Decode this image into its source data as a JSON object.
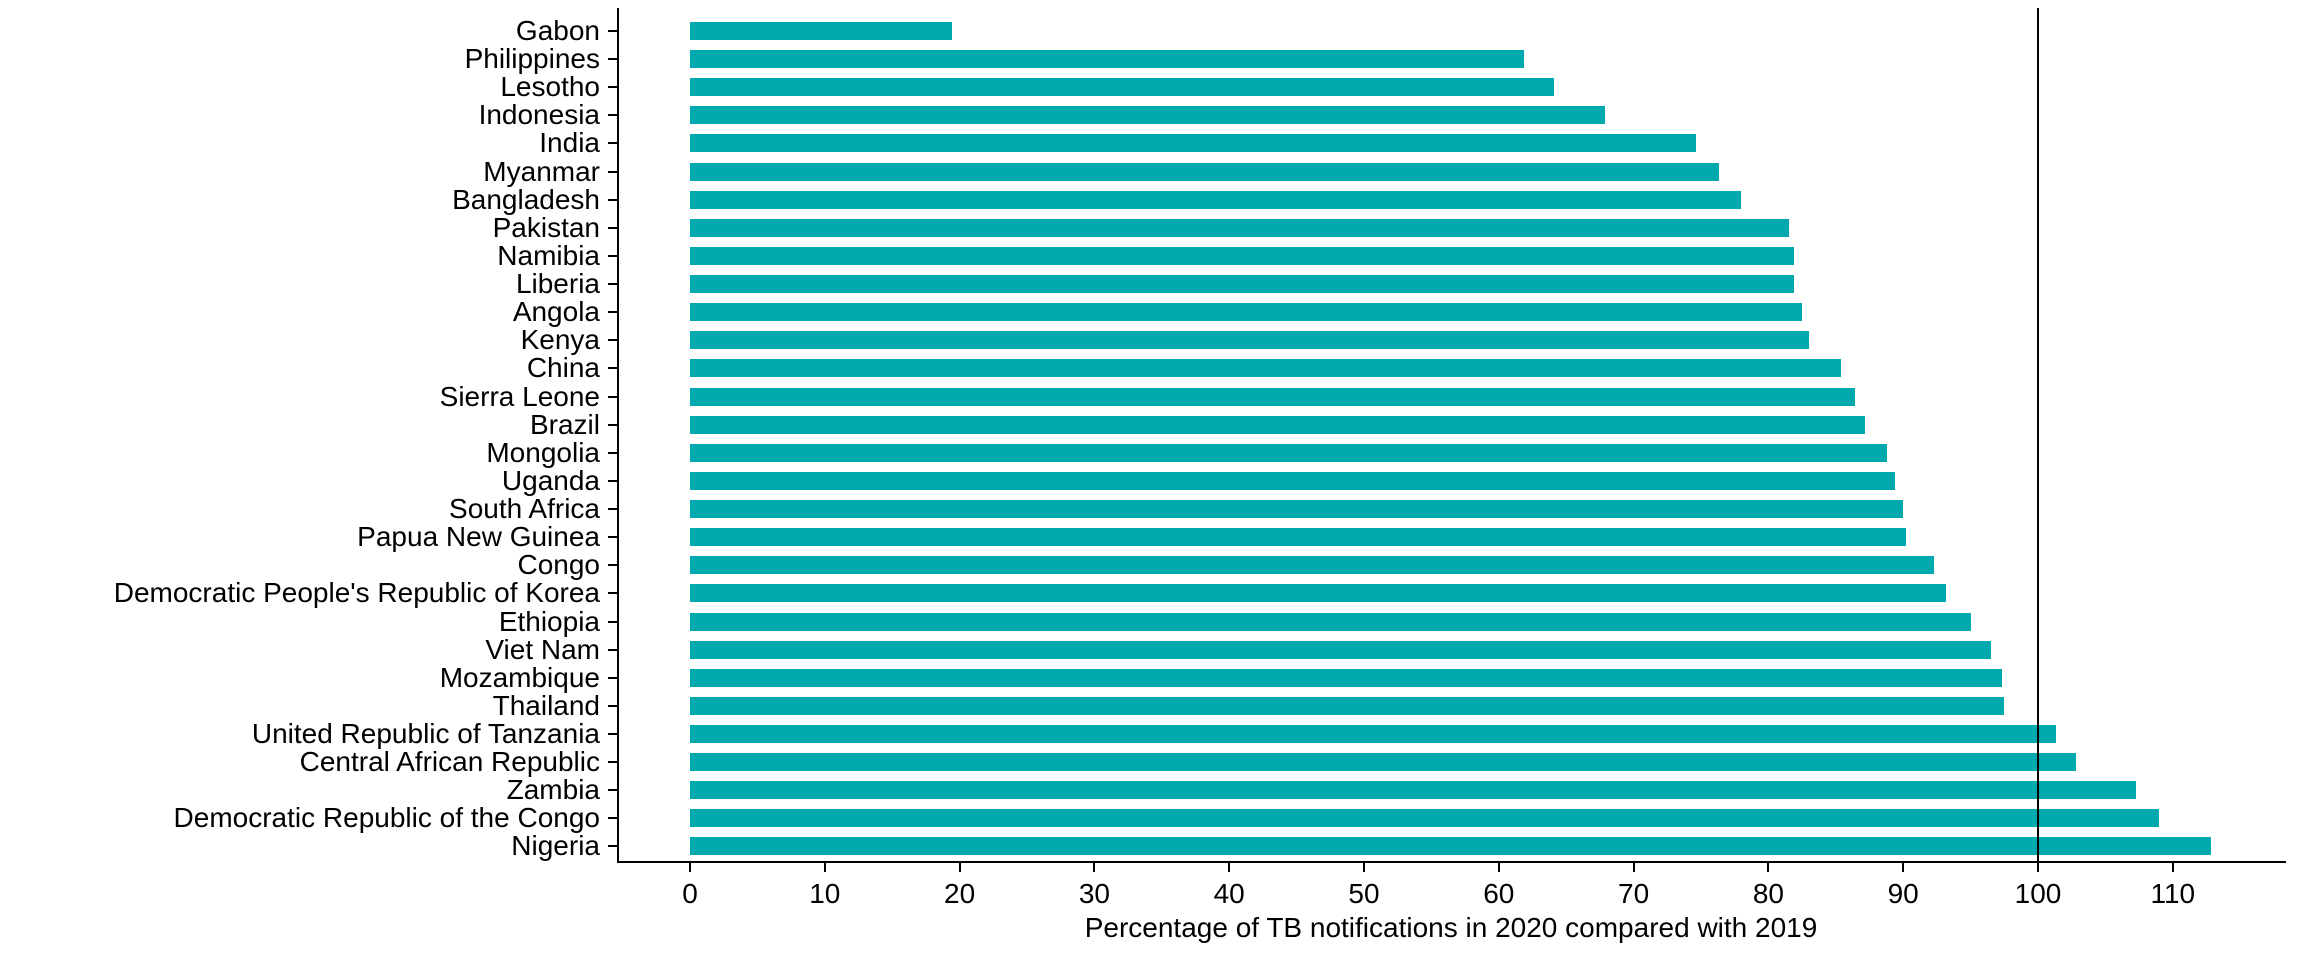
{
  "chart_data": {
    "type": "bar",
    "orientation": "horizontal",
    "title": "",
    "xlabel": "Percentage of TB notifications in 2020 compared with 2019",
    "ylabel": "",
    "x_ticks": [
      0,
      10,
      20,
      30,
      40,
      50,
      60,
      70,
      80,
      90,
      100,
      110
    ],
    "xlim": [
      0,
      117
    ],
    "reference_line_x": 100,
    "grid": false,
    "legend": false,
    "bar_color": "#00A9AD",
    "axis_color": "#000000",
    "categories": [
      "Gabon",
      "Philippines",
      "Lesotho",
      "Indonesia",
      "India",
      "Myanmar",
      "Bangladesh",
      "Pakistan",
      "Namibia",
      "Liberia",
      "Angola",
      "Kenya",
      "China",
      "Sierra Leone",
      "Brazil",
      "Mongolia",
      "Uganda",
      "South Africa",
      "Papua New Guinea",
      "Congo",
      "Democratic People's Republic of Korea",
      "Ethiopia",
      "Viet Nam",
      "Mozambique",
      "Thailand",
      "United Republic of Tanzania",
      "Central African Republic",
      "Zambia",
      "Democratic Republic of the Congo",
      "Nigeria"
    ],
    "values": [
      19.4,
      61.9,
      64.1,
      67.9,
      74.6,
      76.3,
      78.0,
      81.5,
      81.9,
      81.9,
      82.5,
      83.0,
      85.4,
      86.4,
      87.2,
      88.8,
      89.4,
      90.0,
      90.2,
      92.3,
      93.2,
      95.0,
      96.5,
      97.3,
      97.5,
      101.3,
      102.8,
      107.3,
      109.0,
      112.8
    ]
  }
}
